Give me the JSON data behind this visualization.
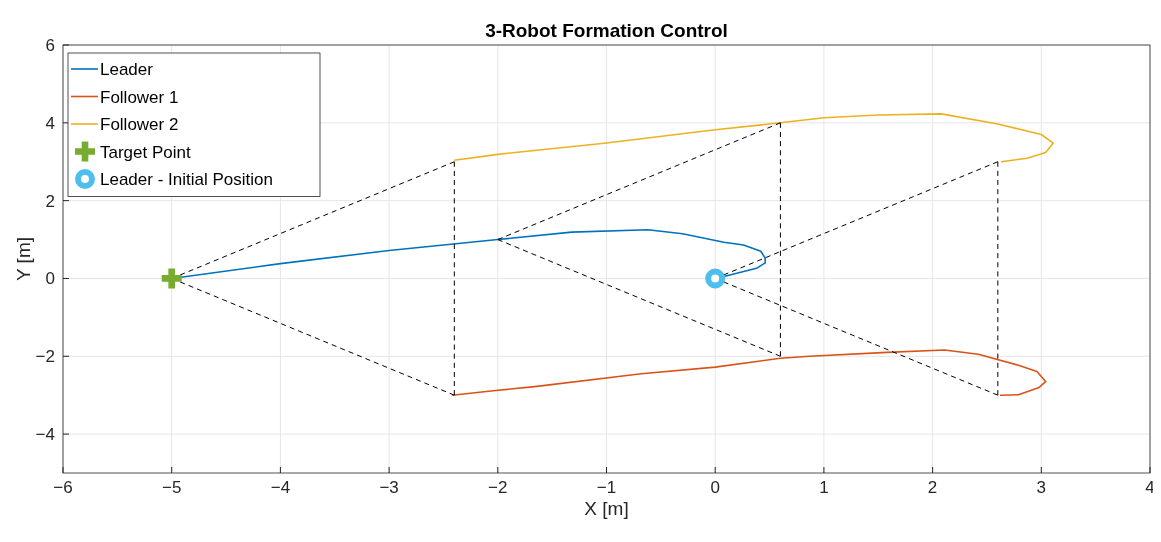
{
  "chart_data": {
    "type": "line",
    "title": "3-Robot Formation Control",
    "xlabel": "X [m]",
    "ylabel": "Y [m]",
    "xlim": [
      -6,
      4
    ],
    "xticks": [
      {
        "value": -6,
        "label": "−6"
      },
      {
        "value": -5,
        "label": "−5"
      },
      {
        "value": -4,
        "label": "−4"
      },
      {
        "value": -3,
        "label": "−3"
      },
      {
        "value": -2,
        "label": "−2"
      },
      {
        "value": -1,
        "label": "−1"
      },
      0,
      1,
      2,
      3,
      4
    ],
    "ylim": [
      -5,
      6
    ],
    "yticks": [
      {
        "value": -4,
        "label": "−4"
      },
      {
        "value": -2,
        "label": "−2"
      },
      0,
      2,
      4,
      6
    ],
    "grid": true,
    "legend": "top left",
    "series": [
      {
        "name": "Leader",
        "color": "#0072bd",
        "line_style": "solid",
        "x": [
          0,
          0.08,
          0.38,
          0.46,
          0.46,
          0.42,
          0.26,
          0.08,
          -0.3,
          -0.62,
          -1.32,
          -2,
          -3,
          -4,
          -5
        ],
        "values": [
          0,
          0.05,
          0.26,
          0.4,
          0.52,
          0.7,
          0.86,
          0.93,
          1.15,
          1.25,
          1.19,
          1,
          0.72,
          0.38,
          0
        ]
      },
      {
        "name": "Follower 1",
        "color": "#d95319",
        "line_style": "solid",
        "x": [
          2.62,
          2.79,
          2.98,
          3.04,
          2.96,
          2.79,
          2.42,
          2.11,
          1.58,
          0.87,
          0.6,
          0,
          -0.68,
          -1.66,
          -2.02,
          -2.42
        ],
        "values": [
          -3.0,
          -2.99,
          -2.8,
          -2.65,
          -2.39,
          -2.23,
          -1.95,
          -1.84,
          -1.9,
          -2.0,
          -2.05,
          -2.28,
          -2.45,
          -2.78,
          -2.88,
          -3.0
        ]
      },
      {
        "name": "Follower 2",
        "color": "#edb120",
        "line_style": "solid",
        "x": [
          2.63,
          2.87,
          3.04,
          3.11,
          3.0,
          2.6,
          2.08,
          1.5,
          1,
          0.6,
          0,
          -1,
          -2,
          -2.4
        ],
        "values": [
          3.0,
          3.09,
          3.24,
          3.48,
          3.7,
          3.97,
          4.23,
          4.2,
          4.13,
          4.0,
          3.82,
          3.48,
          3.19,
          3.04
        ]
      },
      {
        "color": "#000000",
        "line_style": "dashed",
        "x": [
          -5,
          -2.4
        ],
        "values": [
          0,
          3
        ]
      },
      {
        "color": "#000000",
        "line_style": "dashed",
        "x": [
          -5,
          -2.4
        ],
        "values": [
          0,
          -3
        ]
      },
      {
        "color": "#000000",
        "line_style": "dashed",
        "x": [
          -2.4,
          -2.4
        ],
        "values": [
          3,
          -3
        ]
      },
      {
        "color": "#000000",
        "line_style": "dashed",
        "x": [
          -2,
          0.6
        ],
        "values": [
          1,
          4
        ]
      },
      {
        "color": "#000000",
        "line_style": "dashed",
        "x": [
          -2,
          0.6
        ],
        "values": [
          1,
          -2
        ]
      },
      {
        "color": "#000000",
        "line_style": "dashed",
        "x": [
          0.6,
          0.6
        ],
        "values": [
          4,
          -2
        ]
      },
      {
        "color": "#000000",
        "line_style": "dashed",
        "x": [
          0,
          2.6
        ],
        "values": [
          0,
          3
        ]
      },
      {
        "color": "#000000",
        "line_style": "dashed",
        "x": [
          0,
          2.6
        ],
        "values": [
          0,
          -3
        ]
      },
      {
        "color": "#000000",
        "line_style": "dashed",
        "x": [
          2.6,
          2.6
        ],
        "values": [
          3,
          -3
        ]
      },
      {
        "name": "Target Point",
        "type": "scatter",
        "marker": "cross",
        "color": "#77ac30",
        "x": [
          -5
        ],
        "values": [
          0
        ]
      },
      {
        "name": "Leader - Initial Position",
        "type": "scatter",
        "marker": "circle",
        "color": "#4dbeee",
        "x": [
          0
        ],
        "values": [
          0
        ]
      }
    ]
  }
}
